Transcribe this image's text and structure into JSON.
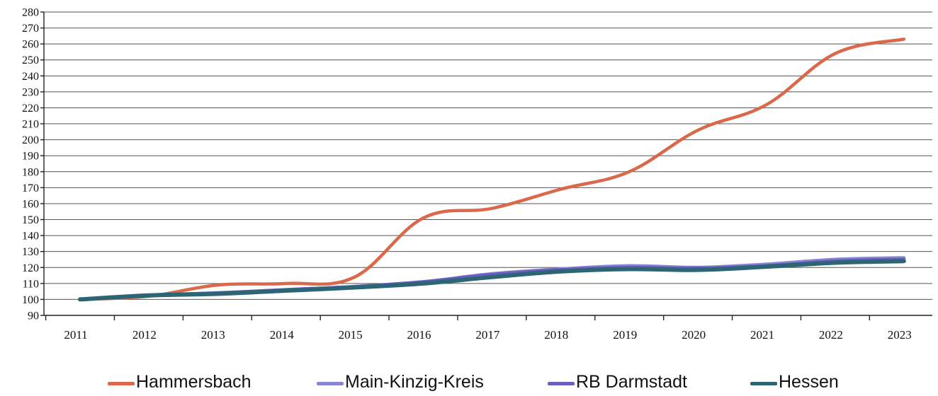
{
  "chart_data": {
    "type": "line",
    "categories": [
      "2011",
      "2012",
      "2013",
      "2014",
      "2015",
      "2016",
      "2017",
      "2018",
      "2019",
      "2020",
      "2021",
      "2022",
      "2023"
    ],
    "ylim": [
      90,
      280
    ],
    "yticks": [
      90,
      100,
      110,
      120,
      130,
      140,
      150,
      160,
      170,
      180,
      190,
      200,
      210,
      220,
      230,
      240,
      250,
      260,
      270,
      280
    ],
    "grid": true,
    "legend_position": "bottom",
    "series": [
      {
        "name": "Hammersbach",
        "color": "#d9694a",
        "values": [
          100,
          102,
          109,
          110,
          114,
          151,
          157,
          169,
          180,
          206,
          222,
          254,
          263
        ]
      },
      {
        "name": "Main-Kinzig-Kreis",
        "color": "#8a86d6",
        "values": [
          100,
          102.5,
          104,
          106,
          108,
          111,
          116,
          119,
          121,
          120,
          122,
          125,
          126
        ]
      },
      {
        "name": "RB Darmstadt",
        "color": "#6a5fc0",
        "values": [
          100,
          102.5,
          104,
          106,
          108,
          111,
          115.5,
          118.5,
          120,
          119.5,
          121,
          124,
          125
        ]
      },
      {
        "name": "Hessen",
        "color": "#2c6674",
        "values": [
          100,
          102.5,
          103.5,
          105.5,
          107.5,
          110,
          114,
          117.5,
          119,
          118.5,
          120.5,
          123,
          124
        ]
      }
    ]
  }
}
